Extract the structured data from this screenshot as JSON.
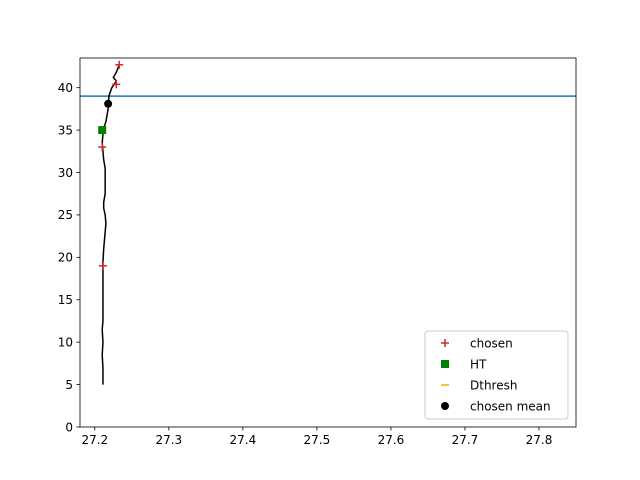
{
  "chart_data": {
    "type": "line",
    "title": "",
    "xlabel": "",
    "ylabel": "",
    "xlim": [
      27.18,
      27.85
    ],
    "ylim": [
      0,
      43.5
    ],
    "x_ticks": [
      "27.2",
      "27.3",
      "27.4",
      "27.5",
      "27.6",
      "27.7",
      "27.8"
    ],
    "y_ticks": [
      "0",
      "5",
      "10",
      "15",
      "20",
      "25",
      "30",
      "35",
      "40"
    ],
    "grid": false,
    "legend_position": "lower-right",
    "profile": {
      "color": "#000000",
      "points": [
        [
          27.211,
          5.0
        ],
        [
          27.211,
          7.0
        ],
        [
          27.21,
          8.5
        ],
        [
          27.211,
          10.0
        ],
        [
          27.21,
          11.5
        ],
        [
          27.211,
          12.5
        ],
        [
          27.211,
          14.5
        ],
        [
          27.211,
          16.5
        ],
        [
          27.211,
          18.5
        ],
        [
          27.211,
          19.5
        ],
        [
          27.212,
          21.0
        ],
        [
          27.213,
          22.0
        ],
        [
          27.214,
          23.0
        ],
        [
          27.215,
          24.0
        ],
        [
          27.214,
          25.0
        ],
        [
          27.212,
          25.8
        ],
        [
          27.212,
          26.5
        ],
        [
          27.214,
          27.5
        ],
        [
          27.214,
          29.0
        ],
        [
          27.214,
          30.5
        ],
        [
          27.212,
          31.5
        ],
        [
          27.211,
          32.5
        ],
        [
          27.21,
          33.5
        ],
        [
          27.211,
          34.5
        ],
        [
          27.212,
          35.2
        ],
        [
          27.215,
          36.0
        ],
        [
          27.218,
          37.5
        ],
        [
          27.219,
          39.0
        ],
        [
          27.223,
          40.0
        ],
        [
          27.227,
          40.5
        ],
        [
          27.229,
          40.8
        ],
        [
          27.225,
          41.2
        ],
        [
          27.229,
          41.8
        ],
        [
          27.233,
          42.7
        ]
      ]
    },
    "series": [
      {
        "name": "chosen",
        "marker": "plus",
        "color": "#d62728",
        "points": [
          [
            27.233,
            42.7
          ],
          [
            27.229,
            40.4
          ],
          [
            27.21,
            33.0
          ],
          [
            27.211,
            19.0
          ]
        ]
      },
      {
        "name": "HT",
        "marker": "square",
        "color": "#008000",
        "points": [
          [
            27.21,
            35.0
          ]
        ]
      },
      {
        "name": "Dthresh",
        "marker": "hline",
        "color": "#ffa500",
        "points": []
      },
      {
        "name": "chosen mean",
        "marker": "circle",
        "color": "#000000",
        "points": [
          [
            27.218,
            38.1
          ]
        ]
      }
    ],
    "hline": {
      "y": 39.0,
      "color": "#1f77b4"
    }
  }
}
